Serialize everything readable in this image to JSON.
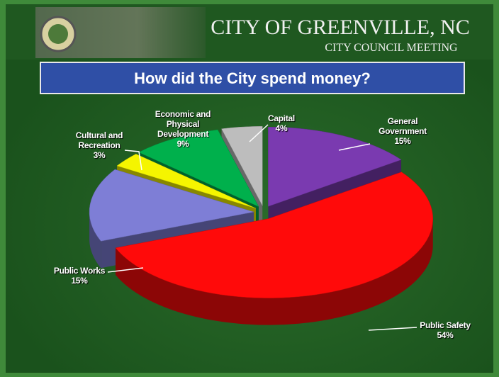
{
  "header": {
    "title": "CITY OF GREENVILLE, NC",
    "subtitle": "CITY COUNCIL MEETING"
  },
  "chart_data": {
    "type": "pie",
    "title": "How did the City spend money?",
    "categories": [
      "General Government",
      "Public Safety",
      "Public Works",
      "Cultural and Recreation",
      "Economic and Physical Development",
      "Capital"
    ],
    "values": [
      15,
      54,
      15,
      3,
      9,
      4
    ],
    "value_labels": [
      "15%",
      "54%",
      "15%",
      "3%",
      "9%",
      "4%"
    ],
    "colors": [
      "#7a3ab0",
      "#ff0a0a",
      "#7e7ed6",
      "#f5f500",
      "#00b04c",
      "#bdbdbd"
    ]
  }
}
